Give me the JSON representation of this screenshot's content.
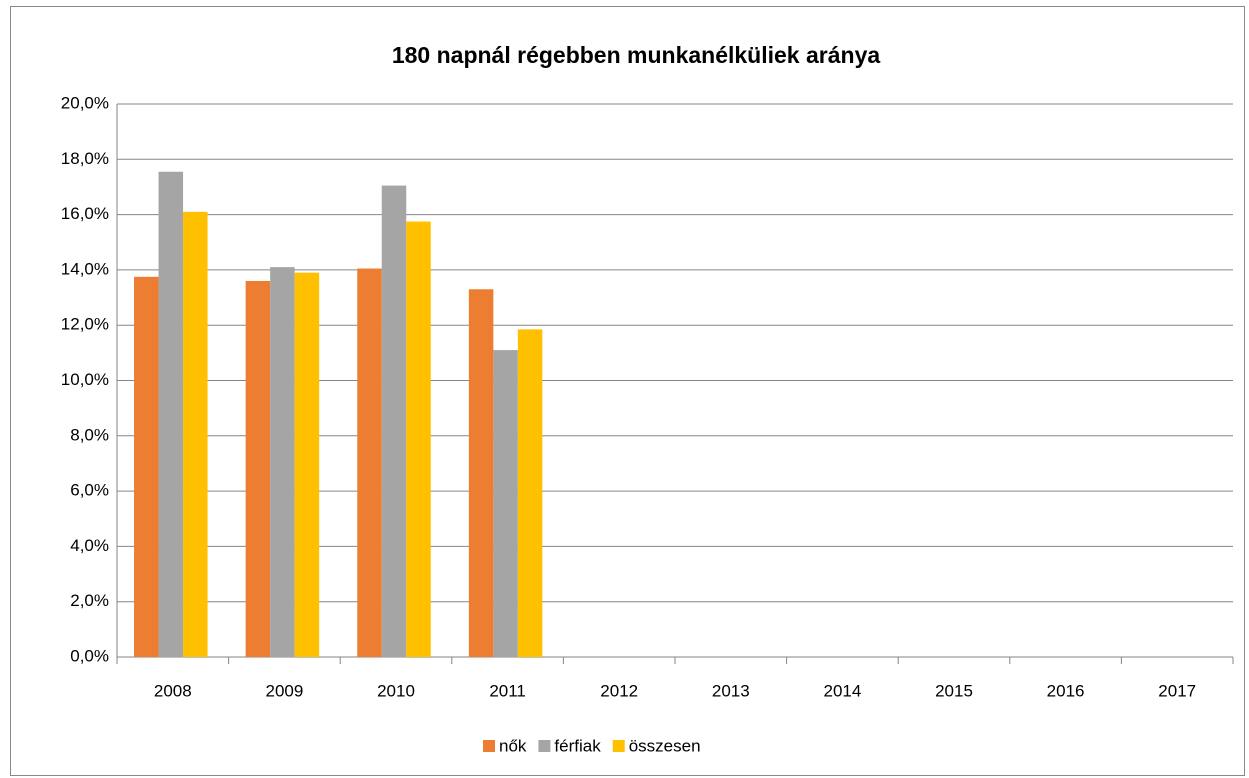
{
  "chart_data": {
    "type": "bar",
    "title": "180 napnál régebben munkanélküliek aránya",
    "categories": [
      "2008",
      "2009",
      "2010",
      "2011",
      "2012",
      "2013",
      "2014",
      "2015",
      "2016",
      "2017"
    ],
    "series": [
      {
        "name": "nők",
        "color": "#ed7d31",
        "values": [
          13.75,
          13.6,
          14.05,
          13.3,
          null,
          null,
          null,
          null,
          null,
          null
        ]
      },
      {
        "name": "férfiak",
        "color": "#a5a5a5",
        "values": [
          17.55,
          14.1,
          17.05,
          11.1,
          null,
          null,
          null,
          null,
          null,
          null
        ]
      },
      {
        "name": "összesen",
        "color": "#ffc000",
        "values": [
          16.1,
          13.9,
          15.75,
          11.85,
          null,
          null,
          null,
          null,
          null,
          null
        ]
      }
    ],
    "ylim": [
      0,
      20
    ],
    "yticks": [
      {
        "value": 0,
        "label": "0,0%"
      },
      {
        "value": 2,
        "label": "2,0%"
      },
      {
        "value": 4,
        "label": "4,0%"
      },
      {
        "value": 6,
        "label": "6,0%"
      },
      {
        "value": 8,
        "label": "8,0%"
      },
      {
        "value": 10,
        "label": "10,0%"
      },
      {
        "value": 12,
        "label": "12,0%"
      },
      {
        "value": 14,
        "label": "14,0%"
      },
      {
        "value": 16,
        "label": "16,0%"
      },
      {
        "value": 18,
        "label": "18,0%"
      },
      {
        "value": 20,
        "label": "20,0%"
      }
    ],
    "grid": true,
    "legend": "bottom"
  }
}
